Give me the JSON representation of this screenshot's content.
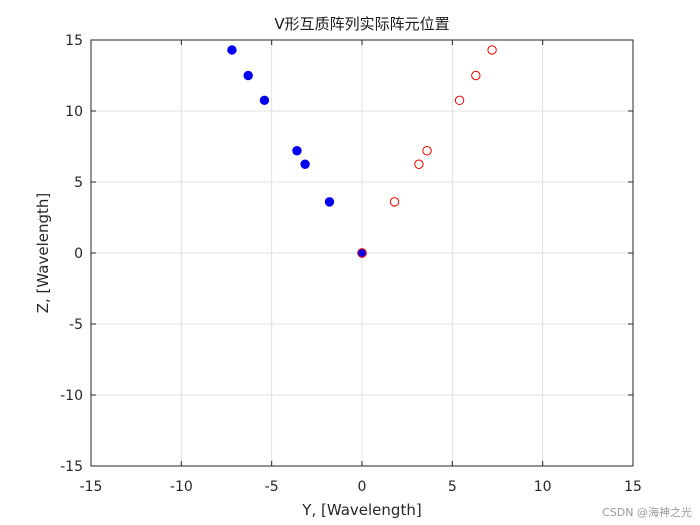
{
  "watermark": "CSDN @海神之光",
  "chart_data": {
    "type": "scatter",
    "title": "V形互质阵列实际阵元位置",
    "xlabel": "Y, [Wavelength]",
    "ylabel": "Z, [Wavelength]",
    "xlim": [
      -15,
      15
    ],
    "ylim": [
      -15,
      15
    ],
    "xticks": [
      -15,
      -10,
      -5,
      0,
      5,
      10,
      15
    ],
    "yticks": [
      -15,
      -10,
      -5,
      0,
      5,
      10,
      15
    ],
    "xtick_labels": [
      "-15",
      "-10",
      "-5",
      "0",
      "5",
      "10",
      "15"
    ],
    "ytick_labels": [
      "-15",
      "-10",
      "-5",
      "0",
      "5",
      "10",
      "15"
    ],
    "grid": true,
    "series": [
      {
        "marker": "filled-circle",
        "color": "#0000ee",
        "x": [
          0,
          -1.8,
          -3.15,
          -3.6,
          -5.4,
          -6.3,
          -7.2
        ],
        "y": [
          0,
          3.6,
          6.25,
          7.2,
          10.75,
          12.5,
          14.3
        ]
      },
      {
        "marker": "open-circle",
        "color": "#ee0000",
        "x": [
          0,
          1.8,
          3.15,
          3.6,
          5.4,
          6.3,
          7.2
        ],
        "y": [
          0,
          3.6,
          6.25,
          7.2,
          10.75,
          12.5,
          14.3
        ]
      }
    ]
  }
}
